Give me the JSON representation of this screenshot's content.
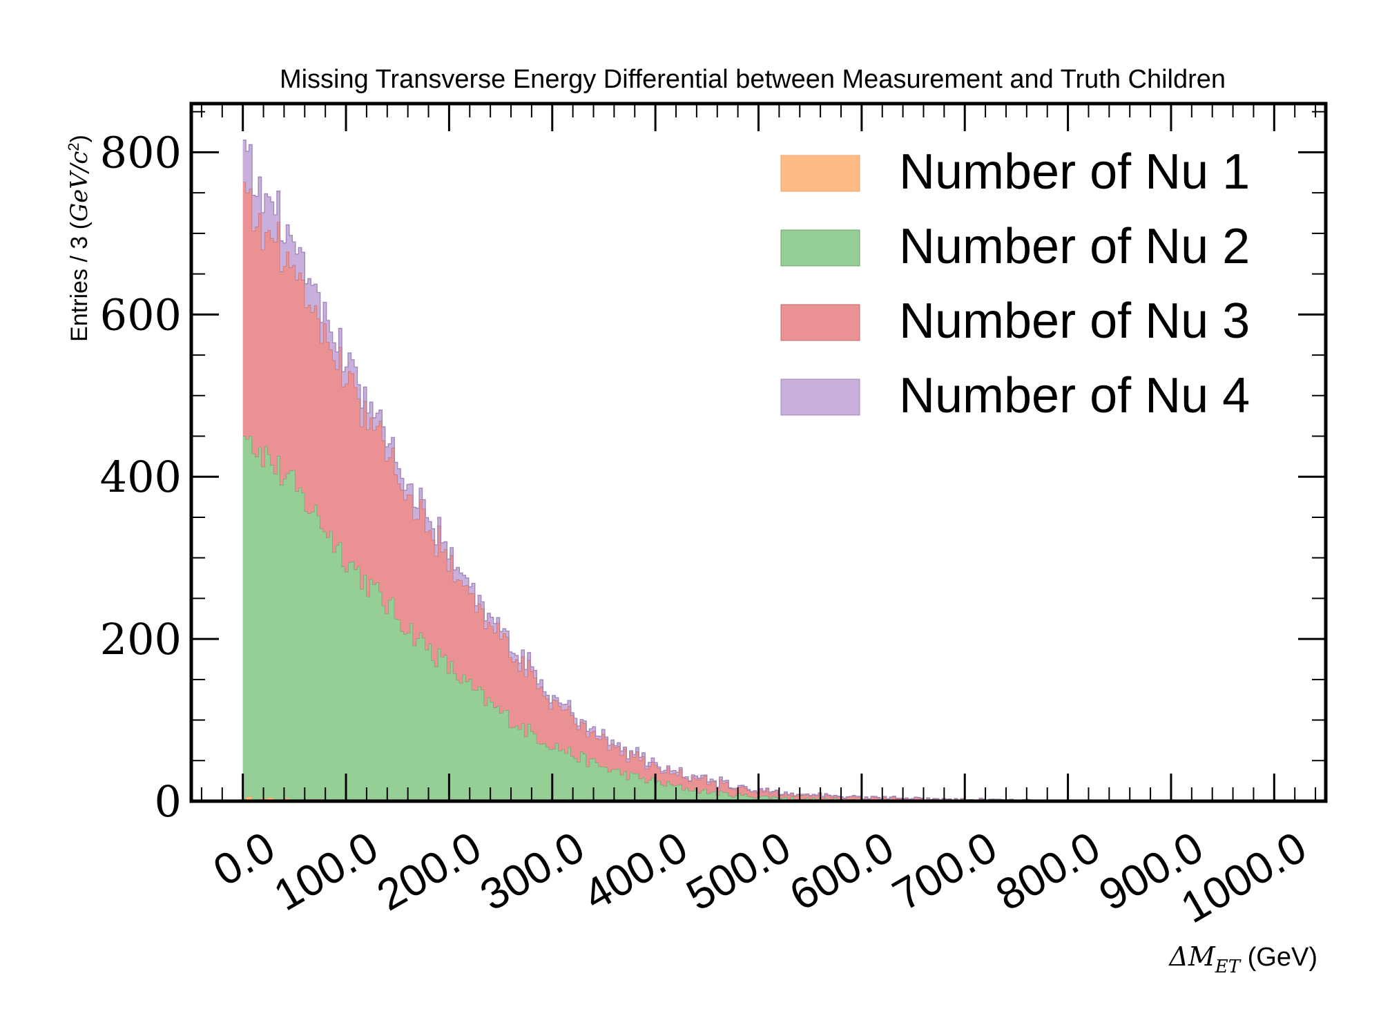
{
  "chart_data": {
    "type": "histogram",
    "stacked": true,
    "title": "Missing Transverse Energy Differential between Measurement and Truth Children",
    "ylabel": "Entries / 3 (GeV/c²)",
    "xlabel": "ΔM_ET (GeV)",
    "xlabel_main": "ΔM",
    "xlabel_sub": "ET",
    "xlabel_unit": " (GeV)",
    "xlim": [
      -50,
      1050
    ],
    "ylim": [
      0,
      860
    ],
    "x_ticks": [
      0,
      100,
      200,
      300,
      400,
      500,
      600,
      700,
      800,
      900,
      1000
    ],
    "x_tick_labels": [
      "0.0",
      "100.0",
      "200.0",
      "300.0",
      "400.0",
      "500.0",
      "600.0",
      "700.0",
      "800.0",
      "900.0",
      "1000.0"
    ],
    "y_ticks": [
      0,
      200,
      400,
      600,
      800
    ],
    "y_tick_labels": [
      "0",
      "200",
      "400",
      "600",
      "800"
    ],
    "bin_width": 3,
    "x_range": [
      0,
      1000
    ],
    "legend_position": "top-right",
    "grid": false,
    "series": [
      {
        "name": "Number of Nu 1",
        "color": "#ffbb83",
        "x": [
          0,
          25,
          50,
          100,
          200,
          300
        ],
        "y": [
          4,
          3,
          2,
          1,
          0,
          0
        ]
      },
      {
        "name": "Number of Nu 2",
        "color": "#95cf95",
        "x": [
          0,
          10,
          25,
          50,
          75,
          100,
          125,
          150,
          175,
          200,
          225,
          250,
          275,
          300,
          325,
          350,
          375,
          400,
          425,
          450,
          475,
          500,
          550,
          600,
          650,
          700,
          800
        ],
        "y": [
          472,
          440,
          420,
          385,
          345,
          300,
          262,
          228,
          195,
          165,
          135,
          110,
          88,
          70,
          55,
          42,
          32,
          24,
          17,
          12,
          8,
          6,
          3,
          2,
          1,
          0.5,
          0
        ]
      },
      {
        "name": "Number of Nu 3",
        "color": "#ea9293",
        "x": [
          0,
          10,
          25,
          50,
          75,
          100,
          125,
          150,
          175,
          200,
          225,
          250,
          275,
          300,
          325,
          350,
          375,
          400,
          425,
          450,
          475,
          500,
          550,
          600,
          650,
          700,
          750,
          800,
          850
        ],
        "y": [
          298,
          288,
          275,
          265,
          245,
          225,
          205,
          178,
          155,
          130,
          108,
          90,
          72,
          56,
          42,
          34,
          26,
          20,
          15,
          12,
          9,
          7,
          4,
          3,
          2,
          1.5,
          1,
          0.5,
          0
        ]
      },
      {
        "name": "Number of Nu 4",
        "color": "#c8afdc",
        "x": [
          0,
          10,
          25,
          50,
          75,
          100,
          150,
          200,
          250,
          300,
          350,
          400,
          450,
          500,
          600,
          700
        ],
        "y": [
          52,
          46,
          40,
          32,
          27,
          22,
          16,
          12,
          9,
          6,
          4,
          3,
          2,
          1,
          0.5,
          0
        ]
      }
    ]
  }
}
